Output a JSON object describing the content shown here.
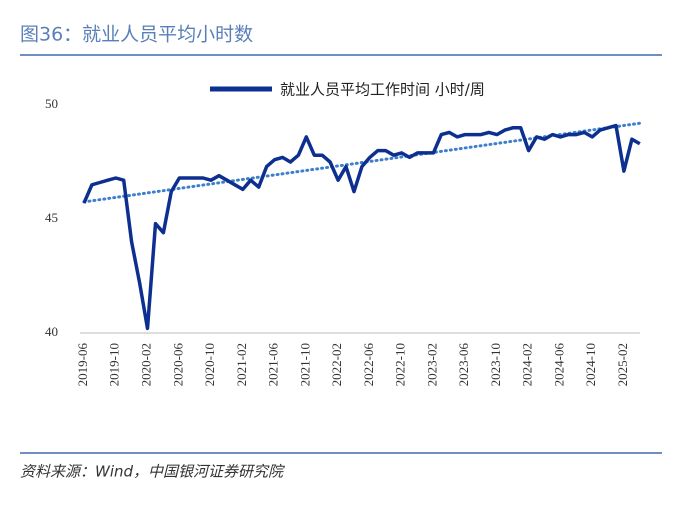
{
  "chart_data": {
    "type": "line",
    "title": "图36：就业人员平均小时数",
    "source": "资料来源：Wind，中国银河证券研究院",
    "categories": [
      "2019-06",
      null,
      null,
      null,
      "2019-10",
      null,
      null,
      null,
      "2020-02",
      null,
      null,
      null,
      "2020-06",
      null,
      null,
      null,
      "2020-10",
      null,
      null,
      null,
      "2021-02",
      null,
      null,
      null,
      "2021-06",
      null,
      null,
      null,
      "2021-10",
      null,
      null,
      null,
      "2022-02",
      null,
      null,
      null,
      "2022-06",
      null,
      null,
      null,
      "2022-10",
      null,
      null,
      null,
      "2023-02",
      null,
      null,
      null,
      "2023-06",
      null,
      null,
      null,
      "2023-10",
      null,
      null,
      null,
      "2024-02",
      null,
      null,
      null,
      "2024-06",
      null,
      null,
      null,
      "2024-10",
      null,
      null,
      null,
      "2025-02",
      null,
      null
    ],
    "series": [
      {
        "name": "就业人员平均工作时间 小时/周",
        "color": "#0d2f8f",
        "values": [
          45.7,
          46.5,
          46.6,
          46.7,
          46.8,
          46.7,
          44.0,
          42.2,
          40.2,
          44.8,
          44.4,
          46.2,
          46.8,
          46.8,
          46.8,
          46.8,
          46.7,
          46.9,
          46.7,
          46.5,
          46.3,
          46.7,
          46.4,
          47.3,
          47.6,
          47.7,
          47.5,
          47.8,
          48.6,
          47.8,
          47.8,
          47.5,
          46.7,
          47.3,
          46.2,
          47.3,
          47.7,
          48.0,
          48.0,
          47.8,
          47.9,
          47.7,
          47.9,
          47.9,
          47.9,
          48.7,
          48.8,
          48.6,
          48.7,
          48.7,
          48.7,
          48.8,
          48.7,
          48.9,
          49.0,
          49.0,
          48.0,
          48.6,
          48.5,
          48.7,
          48.6,
          48.7,
          48.7,
          48.8,
          48.6,
          48.9,
          49.0,
          49.1,
          47.1,
          48.5,
          48.3
        ]
      }
    ],
    "trendline": {
      "start": 45.75,
      "end": 49.2,
      "color": "#3d7fcc"
    },
    "ylim": [
      40,
      50
    ],
    "yticks": [
      40,
      45,
      50
    ],
    "grid": false
  }
}
